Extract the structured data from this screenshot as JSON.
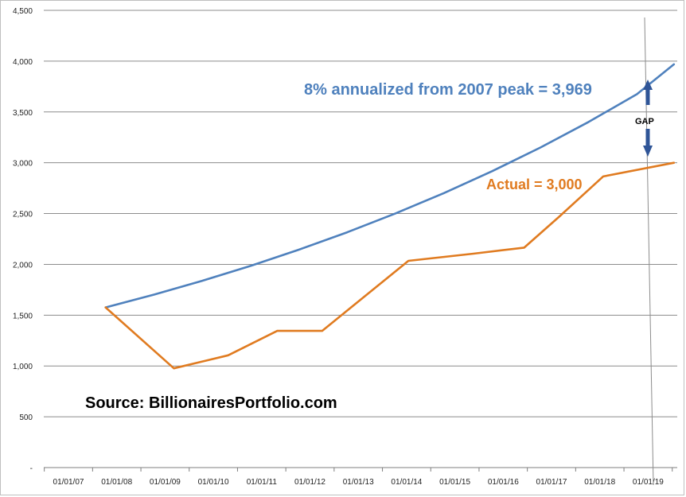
{
  "chart_data": {
    "type": "line",
    "title": "",
    "xlabel": "",
    "ylabel": "",
    "ylim": [
      0,
      4500
    ],
    "y_ticks": [
      "-",
      "500",
      "1,000",
      "1,500",
      "2,000",
      "2,500",
      "3,000",
      "3,500",
      "4,000",
      "4,500"
    ],
    "y_tick_values": [
      0,
      500,
      1000,
      1500,
      2000,
      2500,
      3000,
      3500,
      4000,
      4500
    ],
    "grid": "horizontal",
    "legend": "none",
    "categories": [
      "01/01/07",
      "01/01/08",
      "01/01/09",
      "01/01/10",
      "01/01/11",
      "01/01/12",
      "01/01/13",
      "01/01/14",
      "01/01/15",
      "01/01/16",
      "01/01/17",
      "01/01/18",
      "01/01/19"
    ],
    "series": [
      {
        "color": "#4f81bd",
        "points": [
          {
            "x": "2007-10-09",
            "y": 1576
          },
          {
            "x": "2008-10-09",
            "y": 1702
          },
          {
            "x": "2009-10-09",
            "y": 1838
          },
          {
            "x": "2010-10-09",
            "y": 1985
          },
          {
            "x": "2011-10-09",
            "y": 2144
          },
          {
            "x": "2012-10-09",
            "y": 2316
          },
          {
            "x": "2013-10-09",
            "y": 2501
          },
          {
            "x": "2014-10-09",
            "y": 2701
          },
          {
            "x": "2015-10-09",
            "y": 2917
          },
          {
            "x": "2016-10-09",
            "y": 3150
          },
          {
            "x": "2017-10-09",
            "y": 3402
          },
          {
            "x": "2018-10-09",
            "y": 3675
          },
          {
            "x": "2019-07-15",
            "y": 3969
          }
        ]
      },
      {
        "color": "#e07b20",
        "points": [
          {
            "x": "2007-10-09",
            "y": 1576
          },
          {
            "x": "2009-03-09",
            "y": 977
          },
          {
            "x": "2010-04-23",
            "y": 1105
          },
          {
            "x": "2011-04-29",
            "y": 1345
          },
          {
            "x": "2012-04-02",
            "y": 1345
          },
          {
            "x": "2014-01-15",
            "y": 2035
          },
          {
            "x": "2015-05-21",
            "y": 2105
          },
          {
            "x": "2016-06-08",
            "y": 2165
          },
          {
            "x": "2017-03-01",
            "y": 2470
          },
          {
            "x": "2018-01-26",
            "y": 2865
          },
          {
            "x": "2019-07-15",
            "y": 3000
          }
        ]
      }
    ],
    "annotations": {
      "blue_label": "8% annualized from 2007 peak = 3,969",
      "orange_label": "Actual = 3,000",
      "gap_label": "GAP",
      "source": "Source: BillionairesPortfolio.com"
    }
  },
  "colors": {
    "blue": "#4f81bd",
    "orange": "#e07b20",
    "arrow": "#2f5597",
    "grid": "#8c8c8c"
  }
}
